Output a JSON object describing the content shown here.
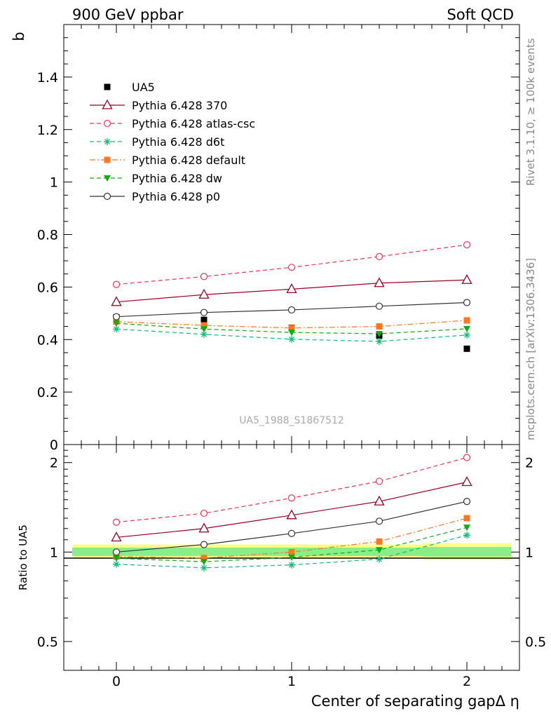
{
  "header": {
    "left": "900 GeV ppbar",
    "right": "Soft QCD"
  },
  "side_labels": {
    "rivet": "Rivet 3.1.10, ≥ 100k events",
    "mcplots": "mcplots.cern.ch [arXiv:1306.3436]"
  },
  "chart_data": [
    {
      "type": "line",
      "panel": "main",
      "ylabel": "b",
      "watermark": "UA5_1988_S1867512",
      "xlim": [
        -0.3,
        2.3
      ],
      "ylim": [
        0,
        1.6
      ],
      "yticks": [
        0,
        0.2,
        0.4,
        0.6,
        0.8,
        1,
        1.2,
        1.4
      ],
      "ytick_labels": [
        "0",
        "0.2",
        "0.4",
        "0.6",
        "0.8",
        "1",
        "1.2",
        "1.4"
      ],
      "x": [
        0,
        0.5,
        1,
        1.5,
        2
      ],
      "legend_position": "top-left",
      "series": [
        {
          "name": "UA5",
          "color": "#000000",
          "style": "data",
          "marker": "square-filled",
          "values": [
            0.485,
            0.475,
            0.445,
            0.415,
            0.365
          ]
        },
        {
          "name": "Pythia 6.428 370",
          "color": "#990022",
          "style": "solid",
          "marker": "triangle-open",
          "values": [
            0.543,
            0.571,
            0.592,
            0.615,
            0.627
          ]
        },
        {
          "name": "Pythia 6.428 atlas-csc",
          "color": "#ee3355",
          "style": "dashed",
          "marker": "circle-open",
          "values": [
            0.61,
            0.64,
            0.675,
            0.716,
            0.761
          ]
        },
        {
          "name": "Pythia 6.428 d6t",
          "color": "#11bb77",
          "style": "dashed",
          "marker": "star",
          "values": [
            0.44,
            0.42,
            0.401,
            0.393,
            0.417
          ]
        },
        {
          "name": "Pythia 6.428 default",
          "color": "#ff7722",
          "style": "dashdot",
          "marker": "square-filled",
          "values": [
            0.468,
            0.454,
            0.444,
            0.45,
            0.473
          ]
        },
        {
          "name": "Pythia 6.428 dw",
          "color": "#11aa11",
          "style": "dashed",
          "marker": "triangle-down-filled",
          "values": [
            0.462,
            0.44,
            0.427,
            0.422,
            0.441
          ]
        },
        {
          "name": "Pythia 6.428 p0",
          "color": "#333333",
          "style": "solid",
          "marker": "circle-open",
          "values": [
            0.487,
            0.503,
            0.513,
            0.527,
            0.541
          ]
        }
      ]
    },
    {
      "type": "line",
      "panel": "ratio",
      "xlabel": "Center of separating gapΔ η",
      "ylabel": "Ratio to UA5",
      "ylim": [
        0.4,
        2.3
      ],
      "yscale": "log",
      "yticks": [
        0.5,
        1,
        2
      ],
      "ytick_labels": [
        "0.5",
        "1",
        "2"
      ],
      "xticks": [
        0,
        1,
        2
      ],
      "xtick_labels": [
        "0",
        "1",
        "2"
      ],
      "x": [
        0,
        0.5,
        1,
        1.5,
        2
      ],
      "band_yellow": [
        [
          0.95,
          1.06
        ],
        [
          0.95,
          1.06
        ],
        [
          0.95,
          1.06
        ],
        [
          0.95,
          1.06
        ],
        [
          0.94,
          1.07
        ]
      ],
      "band_green": [
        [
          0.97,
          1.035
        ],
        [
          0.97,
          1.035
        ],
        [
          0.97,
          1.035
        ],
        [
          0.97,
          1.035
        ],
        [
          0.965,
          1.04
        ]
      ],
      "series": [
        {
          "name": "Pythia 6.428 370",
          "color": "#990022",
          "style": "solid",
          "marker": "triangle-open",
          "values": [
            1.12,
            1.2,
            1.33,
            1.48,
            1.72
          ]
        },
        {
          "name": "Pythia 6.428 atlas-csc",
          "color": "#ee3355",
          "style": "dashed",
          "marker": "circle-open",
          "values": [
            1.26,
            1.35,
            1.52,
            1.73,
            2.08
          ]
        },
        {
          "name": "Pythia 6.428 d6t",
          "color": "#11bb77",
          "style": "dashed",
          "marker": "star",
          "values": [
            0.91,
            0.885,
            0.905,
            0.947,
            1.14
          ]
        },
        {
          "name": "Pythia 6.428 default",
          "color": "#ff7722",
          "style": "dashdot",
          "marker": "square-filled",
          "values": [
            0.965,
            0.955,
            1.0,
            1.085,
            1.3
          ]
        },
        {
          "name": "Pythia 6.428 dw",
          "color": "#11aa11",
          "style": "dashed",
          "marker": "triangle-down-filled",
          "values": [
            0.953,
            0.928,
            0.96,
            1.017,
            1.21
          ]
        },
        {
          "name": "Pythia 6.428 p0",
          "color": "#333333",
          "style": "solid",
          "marker": "circle-open",
          "values": [
            1.0,
            1.06,
            1.155,
            1.27,
            1.48
          ]
        }
      ]
    }
  ]
}
